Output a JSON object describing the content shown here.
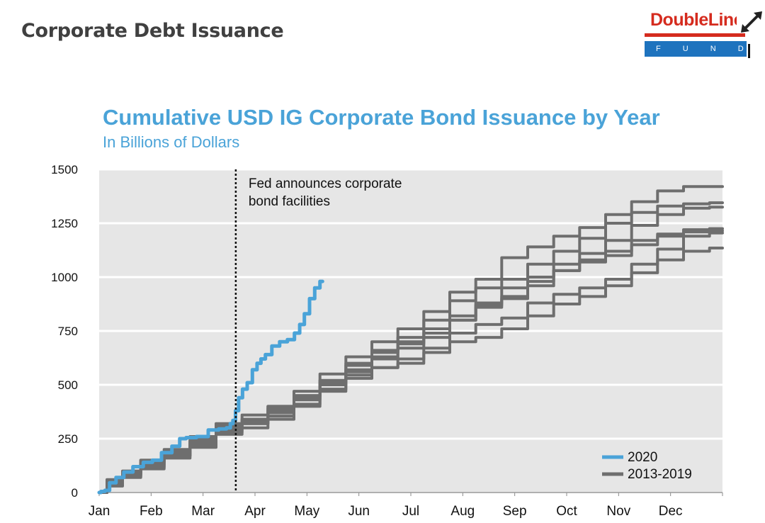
{
  "header": {
    "title": "Corporate Debt Issuance"
  },
  "logo": {
    "brand": "DoubleLine",
    "sub": "F U N D S"
  },
  "colors": {
    "accent": "#4aa3d8",
    "series_2020": "#4aa3d8",
    "series_hist": "#6e6e6e",
    "plot_bg": "#e6e6e6",
    "brand_red": "#d52b1e",
    "brand_blue": "#1e73be"
  },
  "chart_data": {
    "type": "line",
    "title": "Cumulative USD IG Corporate Bond Issuance by Year",
    "subtitle": "In Billions of Dollars",
    "xlabel": "",
    "ylabel": "",
    "x_domain": [
      0,
      12
    ],
    "ylim": [
      0,
      1500
    ],
    "y_ticks": [
      0,
      250,
      500,
      750,
      1000,
      1250,
      1500
    ],
    "x_tick_labels": [
      "Jan",
      "Feb",
      "Mar",
      "Apr",
      "May",
      "Jun",
      "Jul",
      "Aug",
      "Sep",
      "Oct",
      "Nov",
      "Dec"
    ],
    "grid": true,
    "legend_position": "bottom-right",
    "legend": [
      {
        "label": "2020",
        "color": "#4aa3d8"
      },
      {
        "label": "2013-2019",
        "color": "#6e6e6e"
      }
    ],
    "annotation": {
      "label_lines": [
        "Fed announces corporate",
        "bond facilities"
      ],
      "x": 2.63
    },
    "series": [
      {
        "color": "#4aa3d8",
        "x": [
          0,
          0.07,
          0.15,
          0.25,
          0.4,
          0.55,
          0.75,
          0.95,
          1.1,
          1.3,
          1.5,
          1.6,
          1.75,
          2.0,
          2.2,
          2.4,
          2.5,
          2.55,
          2.6,
          2.65,
          2.72,
          2.8,
          2.9,
          3.0,
          3.08,
          3.15,
          3.25,
          3.4,
          3.55,
          3.7,
          3.82,
          3.9,
          4.0,
          4.1,
          4.2,
          4.3
        ],
        "values": [
          0,
          5,
          10,
          45,
          70,
          95,
          120,
          140,
          150,
          185,
          215,
          250,
          255,
          260,
          290,
          295,
          300,
          320,
          335,
          380,
          440,
          480,
          510,
          570,
          600,
          620,
          640,
          680,
          700,
          710,
          740,
          780,
          830,
          900,
          950,
          980
        ]
      },
      {
        "color": "#6e6e6e",
        "x": [
          0,
          0.3,
          0.6,
          1.0,
          1.5,
          2.0,
          2.5,
          3.0,
          3.5,
          4.0,
          4.5,
          5.0,
          5.5,
          6.0,
          6.5,
          7.0,
          7.5,
          8.0,
          8.5,
          9.0,
          9.5,
          10.0,
          10.5,
          11.0,
          11.5,
          12.0
        ],
        "values": [
          0,
          50,
          85,
          130,
          170,
          230,
          290,
          320,
          355,
          410,
          480,
          545,
          580,
          600,
          650,
          700,
          720,
          760,
          820,
          875,
          910,
          960,
          1020,
          1080,
          1120,
          1135
        ]
      },
      {
        "color": "#6e6e6e",
        "x": [
          0,
          0.3,
          0.6,
          1.0,
          1.5,
          2.0,
          2.5,
          3.0,
          3.5,
          4.0,
          4.5,
          5.0,
          5.5,
          6.0,
          6.5,
          7.0,
          7.5,
          8.0,
          8.5,
          9.0,
          9.5,
          10.0,
          10.5,
          11.0,
          11.5,
          12.0
        ],
        "values": [
          0,
          40,
          80,
          115,
          170,
          220,
          280,
          300,
          340,
          400,
          470,
          530,
          580,
          620,
          670,
          740,
          780,
          810,
          880,
          920,
          950,
          990,
          1060,
          1130,
          1190,
          1205
        ]
      },
      {
        "color": "#6e6e6e",
        "x": [
          0,
          0.3,
          0.6,
          1.0,
          1.5,
          2.0,
          2.5,
          3.0,
          3.5,
          4.0,
          4.5,
          5.0,
          5.5,
          6.0,
          6.5,
          7.0,
          7.5,
          8.0,
          8.5,
          9.0,
          9.5,
          10.0,
          10.5,
          11.0,
          11.5,
          12.0
        ],
        "values": [
          0,
          30,
          70,
          110,
          160,
          210,
          270,
          320,
          370,
          430,
          500,
          560,
          620,
          670,
          720,
          800,
          860,
          900,
          960,
          1030,
          1080,
          1120,
          1170,
          1200,
          1220,
          1225
        ]
      },
      {
        "color": "#6e6e6e",
        "x": [
          0,
          0.3,
          0.6,
          1.0,
          1.5,
          2.0,
          2.5,
          3.0,
          3.5,
          4.0,
          4.5,
          5.0,
          5.5,
          6.0,
          6.5,
          7.0,
          7.5,
          8.0,
          8.5,
          9.0,
          9.5,
          10.0,
          10.5,
          11.0,
          11.5,
          12.0
        ],
        "values": [
          0,
          60,
          95,
          150,
          190,
          240,
          300,
          360,
          400,
          450,
          520,
          600,
          660,
          700,
          760,
          820,
          870,
          910,
          980,
          1030,
          1070,
          1100,
          1150,
          1190,
          1210,
          1215
        ]
      },
      {
        "color": "#6e6e6e",
        "x": [
          0,
          0.3,
          0.6,
          1.0,
          1.5,
          2.0,
          2.5,
          3.0,
          3.5,
          4.0,
          4.5,
          5.0,
          5.5,
          6.0,
          6.5,
          7.0,
          7.5,
          8.0,
          8.5,
          9.0,
          9.5,
          10.0,
          10.5,
          11.0,
          11.5,
          12.0
        ],
        "values": [
          0,
          45,
          90,
          140,
          180,
          250,
          310,
          330,
          380,
          440,
          510,
          570,
          630,
          690,
          740,
          800,
          880,
          950,
          1000,
          1060,
          1110,
          1170,
          1240,
          1290,
          1320,
          1325
        ]
      },
      {
        "color": "#6e6e6e",
        "x": [
          0,
          0.3,
          0.6,
          1.0,
          1.5,
          2.0,
          2.5,
          3.0,
          3.5,
          4.0,
          4.5,
          5.0,
          5.5,
          6.0,
          6.5,
          7.0,
          7.5,
          8.0,
          8.5,
          9.0,
          9.5,
          10.0,
          10.5,
          11.0,
          11.5,
          12.0
        ],
        "values": [
          0,
          50,
          100,
          150,
          200,
          260,
          320,
          340,
          390,
          450,
          520,
          590,
          650,
          720,
          800,
          890,
          950,
          990,
          1060,
          1120,
          1180,
          1250,
          1300,
          1330,
          1340,
          1345
        ]
      },
      {
        "color": "#6e6e6e",
        "x": [
          0,
          0.3,
          0.6,
          1.0,
          1.5,
          2.0,
          2.5,
          3.0,
          3.5,
          4.0,
          4.5,
          5.0,
          5.5,
          6.0,
          6.5,
          7.0,
          7.5,
          8.0,
          8.5,
          9.0,
          9.5,
          10.0,
          10.5,
          11.0,
          11.5,
          12.0
        ],
        "values": [
          0,
          35,
          75,
          120,
          175,
          240,
          300,
          340,
          400,
          470,
          550,
          630,
          700,
          760,
          840,
          930,
          990,
          1090,
          1140,
          1190,
          1230,
          1290,
          1350,
          1400,
          1420,
          1420
        ]
      }
    ]
  }
}
